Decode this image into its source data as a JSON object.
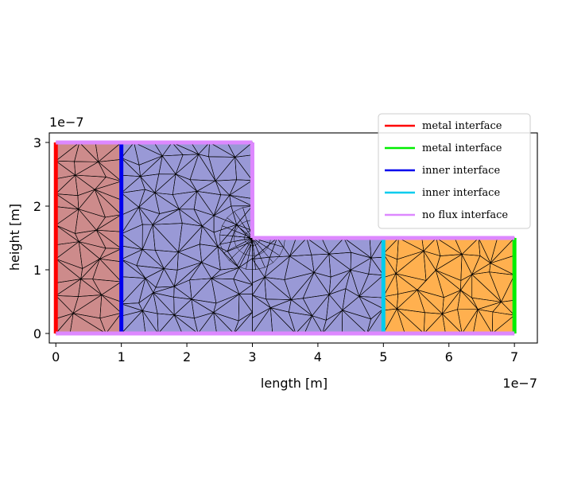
{
  "chart_data": {
    "type": "mesh-domain",
    "xlabel": "length [m]",
    "ylabel": "height [m]",
    "x_offset_text": "1e−7",
    "y_offset_text": "1e−7",
    "xlim": [
      -0.1,
      7.35
    ],
    "ylim": [
      -0.15,
      3.15
    ],
    "xticks": [
      "0",
      "1",
      "2",
      "3",
      "4",
      "5",
      "6",
      "7"
    ],
    "yticks": [
      "0",
      "1",
      "2",
      "3"
    ],
    "grid": false,
    "legend_position": "upper right",
    "regions": [
      {
        "name": "metal region left",
        "color": "#cd8b8b",
        "polygon": [
          [
            0,
            0
          ],
          [
            1,
            0
          ],
          [
            1,
            3
          ],
          [
            0,
            3
          ]
        ]
      },
      {
        "name": "semiconductor region",
        "color": "#9999d6",
        "polygon": [
          [
            1,
            0
          ],
          [
            5,
            0
          ],
          [
            5,
            1.5
          ],
          [
            3,
            1.5
          ],
          [
            3,
            3
          ],
          [
            1,
            3
          ]
        ]
      },
      {
        "name": "metal region right",
        "color": "#ffb04f",
        "polygon": [
          [
            5,
            0
          ],
          [
            7,
            0
          ],
          [
            7,
            1.5
          ],
          [
            5,
            1.5
          ]
        ]
      }
    ],
    "boundaries": [
      {
        "label": "metal interface",
        "color": "#ff0000",
        "segments": [
          [
            [
              0,
              0
            ],
            [
              0,
              3
            ]
          ]
        ]
      },
      {
        "label": "metal interface",
        "color": "#00ee00",
        "segments": [
          [
            [
              7,
              0
            ],
            [
              7,
              1.5
            ]
          ]
        ]
      },
      {
        "label": "inner interface",
        "color": "#0000ee",
        "segments": [
          [
            [
              1,
              0
            ],
            [
              1,
              3
            ]
          ]
        ]
      },
      {
        "label": "inner interface",
        "color": "#00ccee",
        "segments": [
          [
            [
              5,
              0
            ],
            [
              5,
              1.5
            ]
          ]
        ]
      },
      {
        "label": "no flux interface",
        "color": "#dd88ff",
        "segments": [
          [
            [
              0,
              3
            ],
            [
              3,
              3
            ]
          ],
          [
            [
              3,
              3
            ],
            [
              3,
              1.5
            ]
          ],
          [
            [
              3,
              1.5
            ],
            [
              7,
              1.5
            ]
          ],
          [
            [
              0,
              0
            ],
            [
              7,
              0
            ]
          ]
        ]
      }
    ],
    "mesh_refinement_point": [
      3.0,
      1.5
    ]
  }
}
